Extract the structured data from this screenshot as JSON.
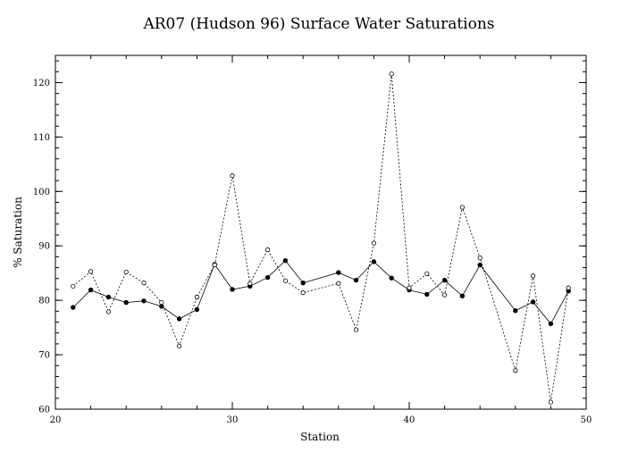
{
  "chart_data": {
    "type": "line",
    "title": "AR07 (Hudson 96) Surface Water Saturations",
    "xlabel": "Station",
    "ylabel": "% Saturation",
    "xlim": [
      20,
      50
    ],
    "ylim": [
      60,
      125
    ],
    "xticks": [
      20,
      30,
      40,
      50
    ],
    "yticks": [
      60,
      70,
      80,
      90,
      100,
      110,
      120
    ],
    "grid": false,
    "legend": "none",
    "series": [
      {
        "style": "solid",
        "marker": "filled-circle",
        "color": "#000000",
        "points": [
          [
            21,
            78.7
          ],
          [
            22,
            81.9
          ],
          [
            23,
            80.6
          ],
          [
            24,
            79.6
          ],
          [
            25,
            79.9
          ],
          [
            26,
            78.9
          ],
          [
            27,
            76.6
          ],
          [
            28,
            78.3
          ],
          [
            29,
            86.6
          ],
          [
            30,
            82.0
          ],
          [
            31,
            82.6
          ],
          [
            32,
            84.2
          ],
          [
            33,
            87.3
          ],
          [
            34,
            83.2
          ],
          [
            36,
            85.1
          ],
          [
            37,
            83.7
          ],
          [
            38,
            87.1
          ],
          [
            39,
            84.1
          ],
          [
            40,
            81.9
          ],
          [
            41,
            81.1
          ],
          [
            42,
            83.7
          ],
          [
            43,
            80.8
          ],
          [
            44,
            86.5
          ],
          [
            46,
            78.1
          ],
          [
            47,
            79.7
          ],
          [
            48,
            75.7
          ],
          [
            49,
            81.7
          ]
        ]
      },
      {
        "style": "dashed",
        "marker": "open-circle",
        "color": "#000000",
        "points": [
          [
            21,
            82.6
          ],
          [
            22,
            85.3
          ],
          [
            23,
            77.9
          ],
          [
            24,
            85.2
          ],
          [
            25,
            83.2
          ],
          [
            26,
            79.6
          ],
          [
            27,
            71.6
          ],
          [
            28,
            80.6
          ],
          [
            29,
            86.5
          ],
          [
            30,
            102.9
          ],
          [
            31,
            83.1
          ],
          [
            32,
            89.3
          ],
          [
            33,
            83.6
          ],
          [
            34,
            81.4
          ],
          [
            36,
            83.1
          ],
          [
            37,
            74.6
          ],
          [
            38,
            90.5
          ],
          [
            39,
            121.6
          ],
          [
            40,
            82.3
          ],
          [
            41,
            84.9
          ],
          [
            42,
            81.0
          ],
          [
            43,
            97.1
          ],
          [
            44,
            87.8
          ],
          [
            46,
            67.1
          ],
          [
            47,
            84.5
          ],
          [
            48,
            61.3
          ],
          [
            49,
            82.3
          ]
        ]
      }
    ]
  }
}
